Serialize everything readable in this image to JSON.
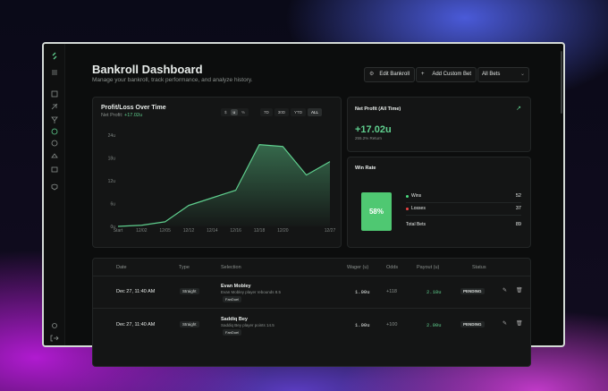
{
  "header": {
    "title": "Bankroll Dashboard",
    "subtitle": "Manage your bankroll, track performance, and analyze history."
  },
  "actions": {
    "edit": "Edit Bankroll",
    "add": "Add Custom Bet",
    "filter": "All Bets"
  },
  "panel": {
    "net_profit_label": "Net Profit:",
    "net_profit_value": "+17.02u",
    "units": [
      "$",
      "u",
      "%"
    ],
    "ranges": [
      "7D",
      "30D",
      "YTD",
      "ALL"
    ]
  },
  "chart_data": {
    "type": "area",
    "title": "Profit/Loss Over Time",
    "categories": [
      "Start",
      "12/02",
      "12/05",
      "12/12",
      "12/14",
      "12/16",
      "12/18",
      "12/20",
      null,
      "12/27"
    ],
    "values": [
      0,
      0.3,
      1.2,
      5.5,
      7.5,
      9.5,
      21.5,
      21,
      13.5,
      17.02
    ],
    "color": "#5fcf8e",
    "ylim": [
      0,
      24
    ],
    "yticks": [
      {
        "value": 0,
        "label": "0u"
      },
      {
        "value": 6,
        "label": "6u"
      },
      {
        "value": 12,
        "label": "12u"
      },
      {
        "value": 18,
        "label": "18u"
      },
      {
        "value": 24,
        "label": "24u"
      }
    ],
    "grid": false
  },
  "net_profit": {
    "title": "Net Profit (All Time)",
    "value": "+17.02u",
    "sub": "255.2% Return"
  },
  "win_rate": {
    "title": "Win Rate",
    "percent": "58%",
    "rows": [
      {
        "label": "Wins",
        "value": 52
      },
      {
        "label": "Losses",
        "value": 37
      },
      {
        "label": "Total Bets",
        "value": 89
      }
    ]
  },
  "table": {
    "columns": [
      "Date",
      "Type",
      "Selection",
      "Wager (u)",
      "Odds",
      "Payout (u)",
      "Status"
    ],
    "rows": [
      {
        "date": "Dec 27, 11:40 AM",
        "type": "Straight",
        "name": "Evan Mobley",
        "detail": "Evan Mobley player rebounds 8.5",
        "book": "FanDuel",
        "wager": "1.00u",
        "odds": "+118",
        "payout": "2.18u",
        "status": "PENDING"
      },
      {
        "date": "Dec 27, 11:40 AM",
        "type": "Straight",
        "name": "Saddiq Bey",
        "detail": "Saddiq Bey player points 14.5",
        "book": "FanDuel",
        "wager": "1.00u",
        "odds": "+100",
        "payout": "2.00u",
        "status": "PENDING"
      }
    ]
  }
}
